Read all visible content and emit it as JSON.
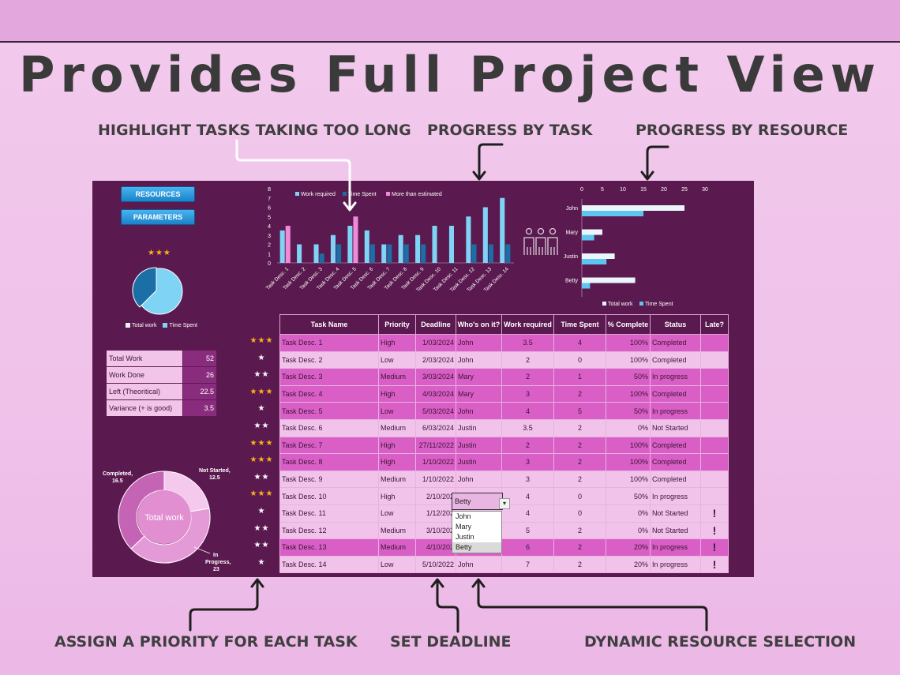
{
  "title": "Provides Full Project View",
  "callouts": {
    "highlight": "HIGHLIGHT TASKS TAKING TOO LONG",
    "progress_task": "PROGRESS BY TASK",
    "progress_resource": "PROGRESS BY RESOURCE",
    "priority": "ASSIGN A PRIORITY FOR EACH TASK",
    "deadline": "SET DEADLINE",
    "dynamic": "DYNAMIC RESOURCE SELECTION"
  },
  "buttons": {
    "resources": "RESOURCES",
    "parameters": "PARAMETERS"
  },
  "overall_stars": "★★★",
  "pie_legend": {
    "total": "Total work",
    "spent": "Time Spent"
  },
  "summary": [
    {
      "label": "Total Work",
      "value": "52"
    },
    {
      "label": "Work Done",
      "value": "26"
    },
    {
      "label": "Left (Theoritical)",
      "value": "22.5"
    },
    {
      "label": "Variance (+ is good)",
      "value": "3.5"
    }
  ],
  "donut": {
    "center": "Total work",
    "completed_label": "Completed,",
    "completed_value": "16.5",
    "notstarted_label": "Not Started,",
    "notstarted_value": "12.5",
    "inprogress_label": "In",
    "inprogress_label2": "Progress,",
    "inprogress_value": "23"
  },
  "colors": {
    "dash_bg": "#5b1a4f",
    "work": "#7fd3f5",
    "spent": "#1b6ea6",
    "over": "#f08ad8",
    "row_odd": "#d95fc6",
    "row_even": "#f1c3ea"
  },
  "chart_data": [
    {
      "type": "bar",
      "categories": [
        "Task Desc. 1",
        "Task Desc. 2",
        "Task Desc. 3",
        "Task Desc. 4",
        "Task Desc. 5",
        "Task Desc. 6",
        "Task Desc. 7",
        "Task Desc. 8",
        "Task Desc. 9",
        "Task Desc. 10",
        "Task Desc. 11",
        "Task Desc. 12",
        "Task Desc. 13",
        "Task Desc. 14"
      ],
      "series": [
        {
          "name": "Work required",
          "values": [
            3.5,
            2,
            2,
            3,
            4,
            3.5,
            2,
            3,
            3,
            4,
            4,
            5,
            6,
            7
          ]
        },
        {
          "name": "Time Spent",
          "values": [
            4,
            0,
            1,
            2,
            5,
            2,
            2,
            2,
            2,
            0,
            0,
            2,
            2,
            2
          ]
        },
        {
          "name": "More than estimated",
          "values": [
            4,
            0,
            0,
            0,
            5,
            0,
            0,
            0,
            0,
            0,
            0,
            0,
            0,
            0
          ]
        }
      ],
      "yticks": [
        "0",
        "1",
        "2",
        "3",
        "4",
        "5",
        "6",
        "7",
        "8"
      ],
      "ylim": [
        0,
        8
      ],
      "legend": "top"
    },
    {
      "type": "bar",
      "orientation": "horizontal",
      "categories": [
        "John",
        "Mary",
        "Justin",
        "Betty"
      ],
      "series": [
        {
          "name": "Total work",
          "values": [
            25,
            5,
            8,
            13
          ]
        },
        {
          "name": "Time Spent",
          "values": [
            15,
            3,
            6,
            2
          ]
        }
      ],
      "xticks": [
        "0",
        "5",
        "10",
        "15",
        "20",
        "25",
        "30"
      ],
      "xlim": [
        0,
        30
      ],
      "legend": "bottom"
    },
    {
      "type": "pie",
      "categories": [
        "Total work",
        "Time Spent"
      ],
      "values": [
        26,
        26
      ]
    },
    {
      "type": "pie",
      "categories": [
        "Completed",
        "Not Started",
        "In Progress"
      ],
      "values": [
        16.5,
        12.5,
        23
      ]
    }
  ],
  "table": {
    "headers": [
      "Task Name",
      "Priority",
      "Deadline",
      "Who's on it?",
      "Work required",
      "Time Spent",
      "% Complete",
      "Status",
      "Late?"
    ],
    "rows": [
      {
        "stars": "★★★",
        "gold": true,
        "name": "Task Desc. 1",
        "priority": "High",
        "deadline": "1/03/2024",
        "who": "John",
        "work": "3.5",
        "spent": "4",
        "pct": "100%",
        "status": "Completed",
        "late": ""
      },
      {
        "stars": "★",
        "gold": false,
        "name": "Task Desc. 2",
        "priority": "Low",
        "deadline": "2/03/2024",
        "who": "John",
        "work": "2",
        "spent": "0",
        "pct": "100%",
        "status": "Completed",
        "late": ""
      },
      {
        "stars": "★★",
        "gold": false,
        "name": "Task Desc. 3",
        "priority": "Medium",
        "deadline": "3/03/2024",
        "who": "Mary",
        "work": "2",
        "spent": "1",
        "pct": "50%",
        "status": "In progress",
        "late": ""
      },
      {
        "stars": "★★★",
        "gold": true,
        "name": "Task Desc. 4",
        "priority": "High",
        "deadline": "4/03/2024",
        "who": "Mary",
        "work": "3",
        "spent": "2",
        "pct": "100%",
        "status": "Completed",
        "late": ""
      },
      {
        "stars": "★",
        "gold": false,
        "name": "Task Desc. 5",
        "priority": "Low",
        "deadline": "5/03/2024",
        "who": "John",
        "work": "4",
        "spent": "5",
        "pct": "50%",
        "status": "In progress",
        "late": ""
      },
      {
        "stars": "★★",
        "gold": false,
        "name": "Task Desc. 6",
        "priority": "Medium",
        "deadline": "6/03/2024",
        "who": "Justin",
        "work": "3.5",
        "spent": "2",
        "pct": "0%",
        "status": "Not Started",
        "late": ""
      },
      {
        "stars": "★★★",
        "gold": true,
        "name": "Task Desc. 7",
        "priority": "High",
        "deadline": "27/11/2022",
        "who": "Justin",
        "work": "2",
        "spent": "2",
        "pct": "100%",
        "status": "Completed",
        "late": ""
      },
      {
        "stars": "★★★",
        "gold": true,
        "name": "Task Desc. 8",
        "priority": "High",
        "deadline": "1/10/2022",
        "who": "Justin",
        "work": "3",
        "spent": "2",
        "pct": "100%",
        "status": "Completed",
        "late": ""
      },
      {
        "stars": "★★",
        "gold": false,
        "name": "Task Desc. 9",
        "priority": "Medium",
        "deadline": "1/10/2022",
        "who": "John",
        "work": "3",
        "spent": "2",
        "pct": "100%",
        "status": "Completed",
        "late": ""
      },
      {
        "stars": "★★★",
        "gold": true,
        "name": "Task Desc. 10",
        "priority": "High",
        "deadline": "2/10/202",
        "who": "",
        "work": "4",
        "spent": "0",
        "pct": "50%",
        "status": "In progress",
        "late": ""
      },
      {
        "stars": "★",
        "gold": false,
        "name": "Task Desc. 11",
        "priority": "Low",
        "deadline": "1/12/202",
        "who": "",
        "work": "4",
        "spent": "0",
        "pct": "0%",
        "status": "Not Started",
        "late": "!"
      },
      {
        "stars": "★★",
        "gold": false,
        "name": "Task Desc. 12",
        "priority": "Medium",
        "deadline": "3/10/202",
        "who": "",
        "work": "5",
        "spent": "2",
        "pct": "0%",
        "status": "Not Started",
        "late": "!"
      },
      {
        "stars": "★★",
        "gold": false,
        "name": "Task Desc. 13",
        "priority": "Medium",
        "deadline": "4/10/202",
        "who": "",
        "work": "6",
        "spent": "2",
        "pct": "20%",
        "status": "In progress",
        "late": "!"
      },
      {
        "stars": "★",
        "gold": false,
        "name": "Task Desc. 14",
        "priority": "Low",
        "deadline": "5/10/2022",
        "who": "John",
        "work": "7",
        "spent": "2",
        "pct": "20%",
        "status": "In progress",
        "late": "!"
      }
    ]
  },
  "dropdown": {
    "selected": "Betty",
    "arrow": "▾",
    "options": [
      "John",
      "Mary",
      "Justin",
      "Betty"
    ]
  }
}
